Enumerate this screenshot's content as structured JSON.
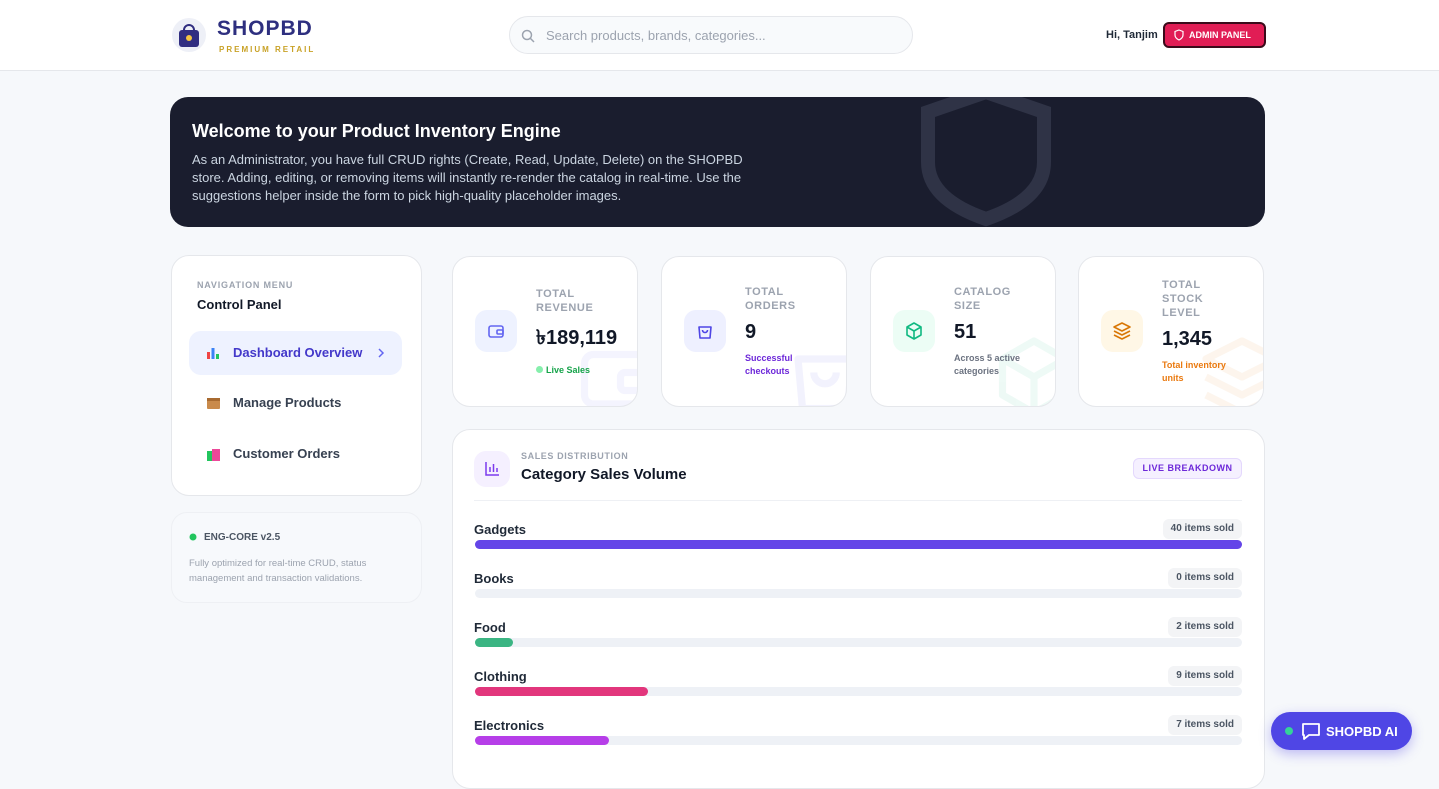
{
  "header": {
    "brand": "SHOPBD",
    "tagline": "PREMIUM RETAIL",
    "search_placeholder": "Search products, brands, categories...",
    "greeting": "Hi, Tanjim",
    "admin_button": "ADMIN PANEL"
  },
  "banner": {
    "title": "Welcome to your Product Inventory Engine",
    "text": "As an Administrator, you have full CRUD rights (Create, Read, Update, Delete) on the SHOPBD store. Adding, editing, or removing items will instantly re-render the catalog in real-time. Use the suggestions helper inside the form to pick high-quality placeholder images."
  },
  "nav": {
    "label": "NAVIGATION MENU",
    "title": "Control Panel",
    "items": [
      "Dashboard Overview",
      "Manage Products",
      "Customer Orders"
    ]
  },
  "engine": {
    "title": "ENG-CORE v2.5",
    "text": "Fully optimized for real-time CRUD, status management and transaction validations."
  },
  "stats": [
    {
      "label": "TOTAL REVENUE",
      "value": "৳189,119",
      "note": "Live Sales"
    },
    {
      "label": "TOTAL ORDERS",
      "value": "9",
      "note": "Successful checkouts"
    },
    {
      "label": "CATALOG SIZE",
      "value": "51",
      "note": "Across 5 active categories"
    },
    {
      "label": "TOTAL STOCK LEVEL",
      "value": "1,345",
      "note": "Total inventory units"
    }
  ],
  "sales": {
    "kicker": "SALES DISTRIBUTION",
    "title": "Category Sales Volume",
    "badge": "LIVE BREAKDOWN",
    "chart_data": {
      "type": "bar",
      "categories": [
        "Gadgets",
        "Books",
        "Food",
        "Clothing",
        "Electronics"
      ],
      "values": [
        40,
        0,
        2,
        9,
        7
      ],
      "value_labels": [
        "40 items sold",
        "0 items sold",
        "2 items sold",
        "9 items sold",
        "7 items sold"
      ],
      "colors": [
        "#6445e8",
        "#6445e8",
        "#3bb583",
        "#e2367c",
        "#b63ee8"
      ]
    }
  },
  "chat_button": "SHOPBD AI"
}
